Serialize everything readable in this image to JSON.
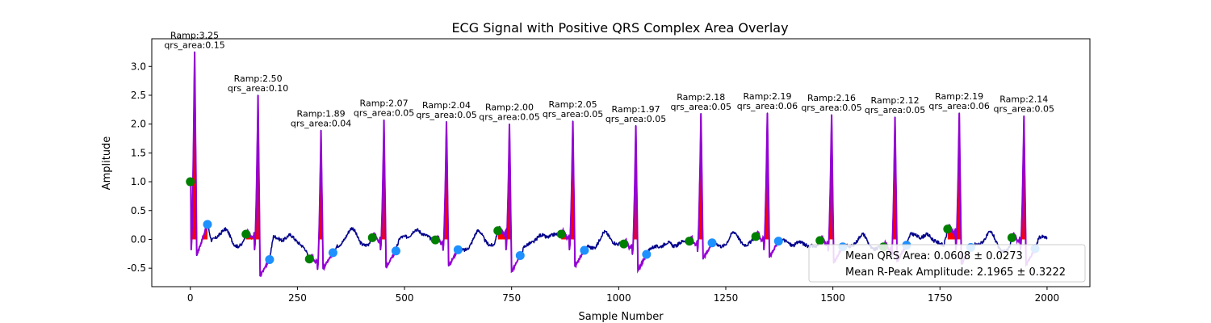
{
  "chart_data": {
    "type": "line",
    "title": "ECG Signal with Positive QRS Complex Area Overlay",
    "xlabel": "Sample Number",
    "ylabel": "Amplitude",
    "xlim": [
      -90,
      2100
    ],
    "ylim": [
      -0.82,
      3.48
    ],
    "xticks": [
      0,
      250,
      500,
      750,
      1000,
      1250,
      1500,
      1750,
      2000
    ],
    "xtick_labels": [
      "0",
      "250",
      "500",
      "750",
      "1000",
      "1250",
      "1500",
      "1750",
      "2000"
    ],
    "yticks": [
      -0.5,
      0.0,
      0.5,
      1.0,
      1.5,
      2.0,
      2.5,
      3.0
    ],
    "ytick_labels": [
      "-0.5",
      "0.0",
      "0.5",
      "1.0",
      "1.5",
      "2.0",
      "2.5",
      "3.0"
    ],
    "grid": false,
    "legend_placement": "lower-right",
    "legend": [
      "Mean QRS Area: 0.0608 ± 0.0273",
      "Mean R-Peak Amplitude: 2.1965 ± 0.3222"
    ],
    "colors": {
      "signal": "#00008b",
      "qrs_segment": "#9400d3",
      "qrs_area": "#ff0000",
      "onset_marker": "#008000",
      "offset_marker": "#1e90ff"
    },
    "beats": [
      {
        "r_sample": 10,
        "r_amp": 3.25,
        "onset_sample": 0,
        "onset_amp": 1.0,
        "offset_sample": 40,
        "offset_amp": 0.26,
        "ramp_label": "Ramp:3.25",
        "area_label": "qrs_area:0.15"
      },
      {
        "r_sample": 158,
        "r_amp": 2.5,
        "onset_sample": 130,
        "onset_amp": 0.09,
        "offset_sample": 185,
        "offset_amp": -0.35,
        "ramp_label": "Ramp:2.50",
        "area_label": "qrs_area:0.10"
      },
      {
        "r_sample": 305,
        "r_amp": 1.89,
        "onset_sample": 278,
        "onset_amp": -0.34,
        "offset_sample": 333,
        "offset_amp": -0.23,
        "ramp_label": "Ramp:1.89",
        "area_label": "qrs_area:0.04"
      },
      {
        "r_sample": 452,
        "r_amp": 2.07,
        "onset_sample": 425,
        "onset_amp": 0.03,
        "offset_sample": 480,
        "offset_amp": -0.2,
        "ramp_label": "Ramp:2.07",
        "area_label": "qrs_area:0.05"
      },
      {
        "r_sample": 598,
        "r_amp": 2.04,
        "onset_sample": 572,
        "onset_amp": -0.01,
        "offset_sample": 625,
        "offset_amp": -0.18,
        "ramp_label": "Ramp:2.04",
        "area_label": "qrs_area:0.05"
      },
      {
        "r_sample": 745,
        "r_amp": 2.0,
        "onset_sample": 718,
        "onset_amp": 0.15,
        "offset_sample": 770,
        "offset_amp": -0.28,
        "ramp_label": "Ramp:2.00",
        "area_label": "qrs_area:0.05"
      },
      {
        "r_sample": 893,
        "r_amp": 2.05,
        "onset_sample": 866,
        "onset_amp": 0.09,
        "offset_sample": 920,
        "offset_amp": -0.19,
        "ramp_label": "Ramp:2.05",
        "area_label": "qrs_area:0.05"
      },
      {
        "r_sample": 1040,
        "r_amp": 1.97,
        "onset_sample": 1012,
        "onset_amp": -0.08,
        "offset_sample": 1065,
        "offset_amp": -0.26,
        "ramp_label": "Ramp:1.97",
        "area_label": "qrs_area:0.05"
      },
      {
        "r_sample": 1192,
        "r_amp": 2.18,
        "onset_sample": 1165,
        "onset_amp": -0.03,
        "offset_sample": 1218,
        "offset_amp": -0.06,
        "ramp_label": "Ramp:2.18",
        "area_label": "qrs_area:0.05"
      },
      {
        "r_sample": 1347,
        "r_amp": 2.19,
        "onset_sample": 1320,
        "onset_amp": 0.05,
        "offset_sample": 1373,
        "offset_amp": -0.03,
        "ramp_label": "Ramp:2.19",
        "area_label": "qrs_area:0.06"
      },
      {
        "r_sample": 1497,
        "r_amp": 2.16,
        "onset_sample": 1470,
        "onset_amp": -0.02,
        "offset_sample": 1523,
        "offset_amp": -0.13,
        "ramp_label": "Ramp:2.16",
        "area_label": "qrs_area:0.05"
      },
      {
        "r_sample": 1645,
        "r_amp": 2.12,
        "onset_sample": 1618,
        "onset_amp": -0.13,
        "offset_sample": 1672,
        "offset_amp": -0.1,
        "ramp_label": "Ramp:2.12",
        "area_label": "qrs_area:0.05"
      },
      {
        "r_sample": 1795,
        "r_amp": 2.19,
        "onset_sample": 1768,
        "onset_amp": 0.18,
        "offset_sample": 1822,
        "offset_amp": -0.14,
        "ramp_label": "Ramp:2.19",
        "area_label": "qrs_area:0.06"
      },
      {
        "r_sample": 1946,
        "r_amp": 2.14,
        "onset_sample": 1918,
        "onset_amp": 0.03,
        "offset_sample": 1972,
        "offset_amp": -0.16,
        "ramp_label": "Ramp:2.14",
        "area_label": "qrs_area:0.05"
      }
    ]
  }
}
